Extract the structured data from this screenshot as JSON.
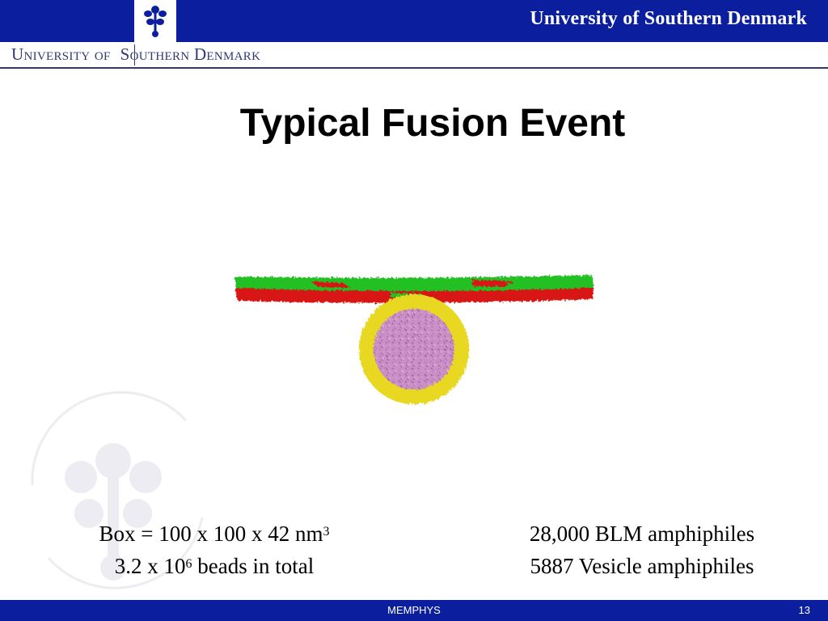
{
  "header": {
    "banner_title": "University of Southern Denmark",
    "subheader_left": "University of",
    "subheader_right": "Southern Denmark"
  },
  "slide": {
    "title": "Typical Fusion Event"
  },
  "info": {
    "box_prefix": "Box = 100 x 100 x 42 nm",
    "box_exp": "3",
    "beads_prefix": "3.2 x 10",
    "beads_exp": "6",
    "beads_suffix": " beads in total",
    "blm": "28,000 BLM amphiphiles",
    "vesicle": "5887 Vesicle amphiphiles"
  },
  "footer": {
    "label": "MEMPHYS",
    "page_number": "13"
  },
  "colors": {
    "brand_blue": "#0b1f9e",
    "membrane_green": "#22c022",
    "membrane_red": "#d81818",
    "vesicle_yellow": "#e8d820",
    "vesicle_core": "#c98fc6"
  },
  "icons": {
    "logo": "tree-logo-icon",
    "watermark": "university-seal-watermark"
  }
}
